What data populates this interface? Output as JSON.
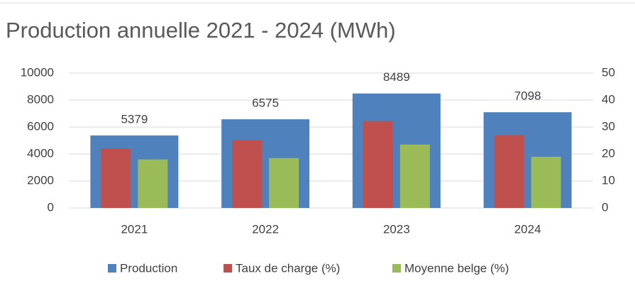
{
  "chart_data": {
    "type": "bar",
    "title": "Production annuelle 2021 - 2024 (MWh)",
    "categories": [
      "2021",
      "2022",
      "2023",
      "2024"
    ],
    "series": [
      {
        "name": "Production",
        "color": "#4f81bd",
        "values": [
          5379,
          6575,
          8489,
          7098
        ]
      },
      {
        "name": "Taux de charge (%)",
        "color": "#c0504d",
        "axis": "y2",
        "values": [
          22,
          25,
          32.2,
          27
        ]
      },
      {
        "name": "Moyenne belge (%)",
        "color": "#9bbb59",
        "axis": "y2",
        "values": [
          18,
          18.5,
          23.5,
          19
        ]
      }
    ],
    "ylim": [
      0,
      10000
    ],
    "yticks": [
      0,
      2000,
      4000,
      6000,
      8000,
      10000
    ],
    "y2lim": [
      0,
      50
    ],
    "y2ticks": [
      0,
      10,
      20,
      30,
      40,
      50
    ],
    "grid": true,
    "legend": "bottom"
  }
}
